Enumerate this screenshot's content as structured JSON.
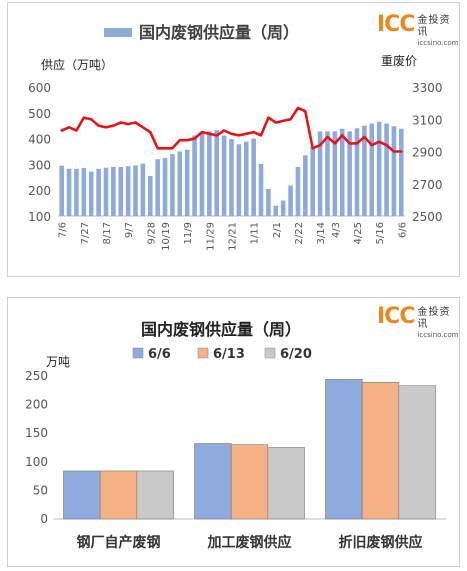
{
  "logo": {
    "main": "ICC",
    "cn": "金投资讯",
    "url": "iccsino.com"
  },
  "chart_data": [
    {
      "type": "bar+line",
      "title": "国内废钢供应量（周）",
      "legend": [
        "国内废钢供应量（周）"
      ],
      "ylabel_left": "供应（万吨）",
      "ylabel_right": "重废价",
      "ylim_left": [
        100,
        600
      ],
      "ylim_right": [
        2500,
        3300
      ],
      "yticks_left": [
        "100",
        "200",
        "300",
        "400",
        "500",
        "600"
      ],
      "yticks_right": [
        "2500",
        "2700",
        "2900",
        "3100",
        "3300"
      ],
      "xtick_labels": [
        "7/6",
        "7/27",
        "8/17",
        "9/7",
        "9/28",
        "10/19",
        "11/9",
        "11/29",
        "12/21",
        "1/11",
        "2/1",
        "2/22",
        "3/14",
        "4/3",
        "4/25",
        "5/16",
        "6/6"
      ],
      "series_bar": [
        295,
        283,
        283,
        286,
        272,
        283,
        287,
        290,
        290,
        293,
        296,
        303,
        255,
        320,
        325,
        340,
        350,
        357,
        412,
        428,
        428,
        433,
        412,
        398,
        378,
        388,
        400,
        302,
        205,
        140,
        160,
        218,
        290,
        335,
        368,
        428,
        428,
        428,
        438,
        428,
        440,
        450,
        458,
        465,
        458,
        448,
        438
      ],
      "series_line": [
        3030,
        3050,
        3030,
        3110,
        3100,
        3060,
        3050,
        3060,
        3080,
        3070,
        3080,
        3050,
        3020,
        2920,
        2920,
        2920,
        2970,
        2970,
        2980,
        3020,
        3010,
        3000,
        3030,
        3010,
        3000,
        3010,
        3020,
        3000,
        3110,
        3080,
        3090,
        3100,
        3170,
        3150,
        2920,
        2940,
        2990,
        2950,
        3000,
        2950,
        2950,
        2990,
        2940,
        2960,
        2940,
        2900,
        2900
      ],
      "bar_color": "#8eaadb",
      "line_color": "#e3151a"
    },
    {
      "type": "bar",
      "title": "国内废钢供应量（周）",
      "ylabel": "万吨",
      "ylim": [
        0,
        250
      ],
      "yticks": [
        "0",
        "50",
        "100",
        "150",
        "200",
        "250"
      ],
      "categories": [
        "钢厂自产废钢",
        "加工废钢供应",
        "折旧废钢供应"
      ],
      "series": [
        {
          "name": "6/6",
          "values": [
            84,
            132,
            244
          ],
          "color": "#8faadc"
        },
        {
          "name": "6/13",
          "values": [
            84,
            130,
            239
          ],
          "color": "#f4b183"
        },
        {
          "name": "6/20",
          "values": [
            84,
            125,
            233
          ],
          "color": "#c9c9c9"
        }
      ]
    }
  ]
}
